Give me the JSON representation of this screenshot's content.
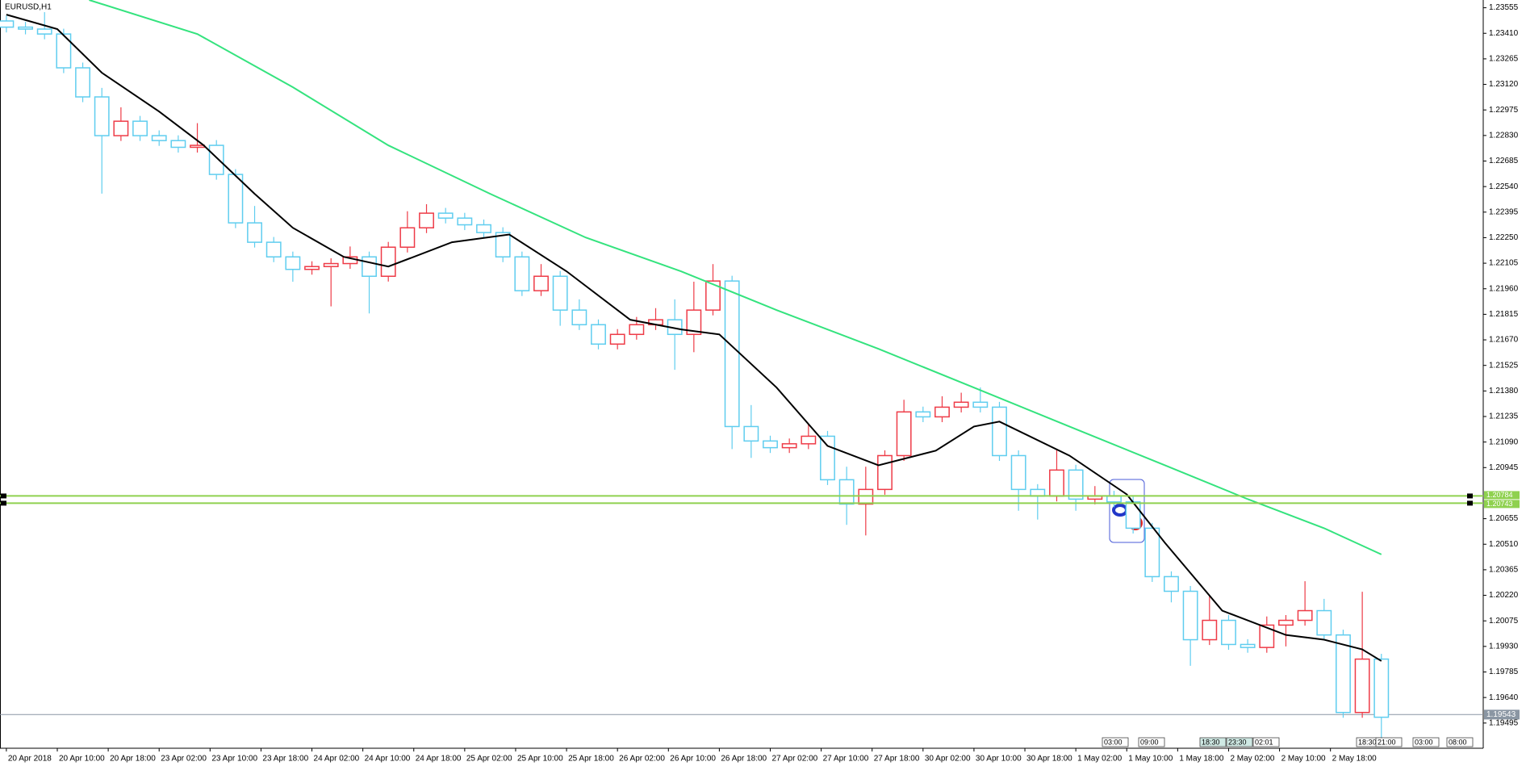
{
  "chart_data": {
    "type": "candlestick",
    "title": "EURUSD,H1",
    "x": [
      0,
      3,
      6,
      9,
      12,
      15,
      18,
      21,
      24,
      27,
      30,
      33,
      36,
      39,
      42,
      45,
      48,
      51,
      54,
      57,
      60,
      63,
      66,
      69,
      72,
      75,
      78,
      81,
      84,
      87,
      90,
      93,
      96,
      99,
      102,
      105,
      108,
      111,
      114,
      117,
      120,
      123,
      126,
      129,
      132,
      135,
      138,
      141,
      144,
      147,
      150,
      153,
      156,
      159,
      162,
      165,
      168,
      171,
      174,
      177,
      180,
      183,
      186,
      189,
      192,
      195,
      198,
      201,
      204,
      207,
      210,
      213,
      216
    ],
    "open": [
      1.2348,
      1.23445,
      1.23434,
      1.23406,
      1.23214,
      1.23049,
      1.22829,
      1.22911,
      1.22829,
      1.22801,
      1.22763,
      1.22774,
      1.22609,
      1.22334,
      1.22224,
      1.22141,
      1.2207,
      1.22086,
      1.22103,
      1.22141,
      1.22031,
      1.22196,
      1.22306,
      1.22389,
      1.22361,
      1.22323,
      1.22279,
      1.22141,
      1.21949,
      1.22031,
      1.21839,
      1.21756,
      1.21646,
      1.21701,
      1.21756,
      1.21784,
      1.21701,
      1.21839,
      1.22004,
      1.21178,
      1.21096,
      1.21058,
      1.2108,
      1.21123,
      1.20876,
      1.20738,
      1.20821,
      1.21013,
      1.21261,
      1.21233,
      1.21288,
      1.21316,
      1.21288,
      1.21013,
      1.20821,
      1.20783,
      1.20931,
      1.20766,
      1.20783,
      1.2075,
      1.20601,
      1.20326,
      1.20243,
      1.19968,
      1.20078,
      1.19941,
      1.19924,
      1.20051,
      1.20078,
      1.20133,
      1.19995,
      1.19555,
      1.19858
    ],
    "high": [
      1.2351,
      1.23475,
      1.2353,
      1.23436,
      1.23244,
      1.231,
      1.2299,
      1.22941,
      1.22859,
      1.22831,
      1.229,
      1.22804,
      1.22639,
      1.2243,
      1.22254,
      1.22171,
      1.22116,
      1.22133,
      1.222,
      1.22171,
      1.22226,
      1.224,
      1.2244,
      1.22419,
      1.22391,
      1.22353,
      1.22309,
      1.22171,
      1.221,
      1.22061,
      1.219,
      1.21786,
      1.21731,
      1.218,
      1.2185,
      1.219,
      1.22,
      1.221,
      1.22034,
      1.213,
      1.21126,
      1.2111,
      1.2119,
      1.21153,
      1.2095,
      1.2095,
      1.21043,
      1.2133,
      1.21291,
      1.2135,
      1.2137,
      1.214,
      1.21318,
      1.21043,
      1.20851,
      1.2105,
      1.20961,
      1.2084,
      1.20813,
      1.2078,
      1.20631,
      1.20356,
      1.20273,
      1.2022,
      1.20108,
      1.19971,
      1.201,
      1.20108,
      1.203,
      1.202,
      1.20025,
      1.2024,
      1.19888
    ],
    "low": [
      1.23415,
      1.23404,
      1.23376,
      1.23184,
      1.23019,
      1.225,
      1.22799,
      1.22799,
      1.22771,
      1.22733,
      1.22733,
      1.22579,
      1.22304,
      1.22194,
      1.22111,
      1.22,
      1.2204,
      1.2186,
      1.22073,
      1.2182,
      1.22001,
      1.22166,
      1.22276,
      1.22331,
      1.22293,
      1.22249,
      1.22111,
      1.21919,
      1.21919,
      1.2175,
      1.21726,
      1.21616,
      1.21616,
      1.21671,
      1.21726,
      1.215,
      1.216,
      1.21809,
      1.2105,
      1.21,
      1.21028,
      1.21028,
      1.2105,
      1.20846,
      1.2062,
      1.2056,
      1.20791,
      1.20983,
      1.21203,
      1.21203,
      1.21258,
      1.21258,
      1.20983,
      1.207,
      1.2065,
      1.20753,
      1.207,
      1.20736,
      1.2072,
      1.20571,
      1.20296,
      1.2018,
      1.1982,
      1.19938,
      1.19911,
      1.19894,
      1.19894,
      1.1993,
      1.20048,
      1.19965,
      1.19525,
      1.19525,
      1.194
    ],
    "close": [
      1.23445,
      1.23434,
      1.23406,
      1.23214,
      1.23049,
      1.22829,
      1.22911,
      1.22829,
      1.22801,
      1.22763,
      1.22774,
      1.22609,
      1.22334,
      1.22224,
      1.22141,
      1.2207,
      1.22086,
      1.22103,
      1.22141,
      1.22031,
      1.22196,
      1.22306,
      1.22389,
      1.22361,
      1.22323,
      1.22279,
      1.22141,
      1.21949,
      1.22031,
      1.21839,
      1.21756,
      1.21646,
      1.21701,
      1.21756,
      1.21784,
      1.21701,
      1.21839,
      1.22004,
      1.21178,
      1.21096,
      1.21058,
      1.2108,
      1.21123,
      1.20876,
      1.20738,
      1.20821,
      1.21013,
      1.21261,
      1.21233,
      1.21288,
      1.21316,
      1.21288,
      1.21013,
      1.20821,
      1.20783,
      1.20931,
      1.20766,
      1.20783,
      1.2075,
      1.20601,
      1.20326,
      1.20243,
      1.19968,
      1.20078,
      1.19941,
      1.19924,
      1.20051,
      1.20078,
      1.20133,
      1.19995,
      1.19555,
      1.19858,
      1.19528
    ],
    "up_color": "#ee3b47",
    "down_color": "#5fcdef",
    "series": [
      {
        "color": "#000000",
        "x": [
          0,
          8,
          15,
          24,
          31,
          39,
          45,
          53,
          60,
          70,
          79,
          88,
          98,
          106,
          112,
          121,
          129,
          137,
          146,
          152,
          156,
          167,
          176,
          182,
          191,
          201,
          207,
          213,
          216
        ],
        "values": [
          1.23516,
          1.23434,
          1.23186,
          1.22966,
          1.22774,
          1.22499,
          1.22306,
          1.22141,
          1.22086,
          1.22224,
          1.22268,
          1.22059,
          1.21784,
          1.21729,
          1.21701,
          1.21399,
          1.21068,
          1.20958,
          1.21041,
          1.21178,
          1.21206,
          1.21013,
          1.20793,
          1.20518,
          1.20133,
          1.19995,
          1.19968,
          1.19913,
          1.19847
        ]
      },
      {
        "color": "#34e37e",
        "x": [
          13,
          30,
          45,
          60,
          76,
          91,
          106,
          121,
          137,
          152,
          167,
          182,
          195,
          207,
          216
        ],
        "values": [
          1.23599,
          1.23406,
          1.23104,
          1.22774,
          1.22499,
          1.22251,
          1.22059,
          1.21839,
          1.21619,
          1.21399,
          1.21178,
          1.20958,
          1.20766,
          1.20601,
          1.20452
        ]
      }
    ],
    "hlines": [
      {
        "value": 1.20784,
        "label": "1.20784",
        "color": "#8fd14f"
      },
      {
        "value": 1.20743,
        "label": "1.20743",
        "color": "#8fd14f"
      }
    ],
    "price_line": {
      "value": 1.19543,
      "label": "1.19543",
      "color": "#8a96a3"
    },
    "xlim": [
      -1,
      232
    ],
    "ylim": [
      1.19352,
      1.23599
    ],
    "yticks": [
      {
        "value": 1.23555,
        "label": "1.23555"
      },
      {
        "value": 1.2341,
        "label": "1.23410"
      },
      {
        "value": 1.23265,
        "label": "1.23265"
      },
      {
        "value": 1.2312,
        "label": "1.23120"
      },
      {
        "value": 1.22975,
        "label": "1.22975"
      },
      {
        "value": 1.2283,
        "label": "1.22830"
      },
      {
        "value": 1.22685,
        "label": "1.22685"
      },
      {
        "value": 1.2254,
        "label": "1.22540"
      },
      {
        "value": 1.22395,
        "label": "1.22395"
      },
      {
        "value": 1.2225,
        "label": "1.22250"
      },
      {
        "value": 1.22105,
        "label": "1.22105"
      },
      {
        "value": 1.2196,
        "label": "1.21960"
      },
      {
        "value": 1.21815,
        "label": "1.21815"
      },
      {
        "value": 1.2167,
        "label": "1.21670"
      },
      {
        "value": 1.21525,
        "label": "1.21525"
      },
      {
        "value": 1.2138,
        "label": "1.21380"
      },
      {
        "value": 1.21235,
        "label": "1.21235"
      },
      {
        "value": 1.2109,
        "label": "1.21090"
      },
      {
        "value": 1.20945,
        "label": "1.20945"
      },
      {
        "value": 1.20655,
        "label": "1.20655"
      },
      {
        "value": 1.2051,
        "label": "1.20510"
      },
      {
        "value": 1.20365,
        "label": "1.20365"
      },
      {
        "value": 1.2022,
        "label": "1.20220"
      },
      {
        "value": 1.20075,
        "label": "1.20075"
      },
      {
        "value": 1.1993,
        "label": "1.19930"
      },
      {
        "value": 1.19785,
        "label": "1.19785"
      },
      {
        "value": 1.1964,
        "label": "1.19640"
      },
      {
        "value": 1.19495,
        "label": "1.19495"
      }
    ],
    "xticks": [
      {
        "value": 0,
        "label": "20 Apr 2018"
      },
      {
        "value": 8,
        "label": "20 Apr 10:00"
      },
      {
        "value": 16,
        "label": "20 Apr 18:00"
      },
      {
        "value": 24,
        "label": "23 Apr 02:00"
      },
      {
        "value": 32,
        "label": "23 Apr 10:00"
      },
      {
        "value": 40,
        "label": "23 Apr 18:00"
      },
      {
        "value": 48,
        "label": "24 Apr 02:00"
      },
      {
        "value": 56,
        "label": "24 Apr 10:00"
      },
      {
        "value": 64,
        "label": "24 Apr 18:00"
      },
      {
        "value": 72,
        "label": "25 Apr 02:00"
      },
      {
        "value": 80,
        "label": "25 Apr 10:00"
      },
      {
        "value": 88,
        "label": "25 Apr 18:00"
      },
      {
        "value": 96,
        "label": "26 Apr 02:00"
      },
      {
        "value": 104,
        "label": "26 Apr 10:00"
      },
      {
        "value": 112,
        "label": "26 Apr 18:00"
      },
      {
        "value": 120,
        "label": "27 Apr 02:00"
      },
      {
        "value": 128,
        "label": "27 Apr 10:00"
      },
      {
        "value": 136,
        "label": "27 Apr 18:00"
      },
      {
        "value": 144,
        "label": "30 Apr 02:00"
      },
      {
        "value": 152,
        "label": "30 Apr 10:00"
      },
      {
        "value": 160,
        "label": "30 Apr 18:00"
      },
      {
        "value": 168,
        "label": "1 May 02:00"
      },
      {
        "value": 176,
        "label": "1 May 10:00"
      },
      {
        "value": 184,
        "label": "1 May 18:00"
      },
      {
        "value": 192,
        "label": "2 May 02:00"
      },
      {
        "value": 200,
        "label": "2 May 10:00"
      },
      {
        "value": 208,
        "label": "2 May 18:00"
      }
    ],
    "time_markers": [
      "03:00",
      "09:00",
      "18:30",
      "23:30",
      "02:01",
      "18:30",
      "21:00",
      "03:00",
      "08:00"
    ]
  }
}
